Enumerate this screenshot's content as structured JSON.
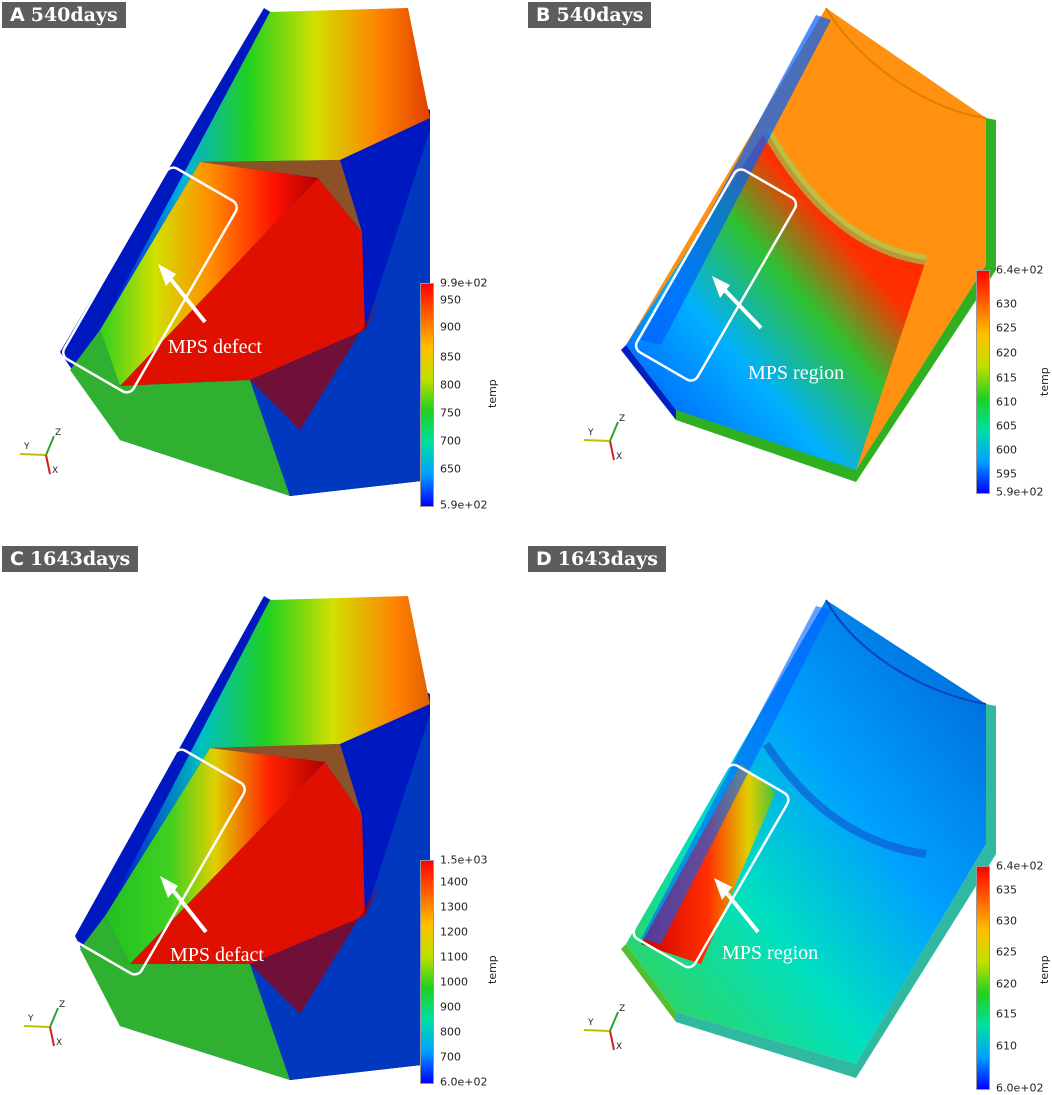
{
  "panels": {
    "A": {
      "letter": "A",
      "time": "540days",
      "annotation": "MPS defect",
      "colorbar_title": "temp",
      "ticks": [
        "9.9e+02",
        "950",
        "900",
        "850",
        "800",
        "750",
        "700",
        "650",
        "5.9e+02"
      ]
    },
    "B": {
      "letter": "B",
      "time": "540days",
      "annotation": "MPS region",
      "colorbar_title": "temp",
      "ticks": [
        "6.4e+02",
        "630",
        "625",
        "620",
        "615",
        "610",
        "605",
        "600",
        "595",
        "5.9e+02"
      ]
    },
    "C": {
      "letter": "C",
      "time": "1643days",
      "annotation": "MPS defact",
      "colorbar_title": "temp",
      "ticks": [
        "1.5e+03",
        "1400",
        "1300",
        "1200",
        "1100",
        "1000",
        "900",
        "800",
        "700",
        "6.0e+02"
      ]
    },
    "D": {
      "letter": "D",
      "time": "1643days",
      "annotation": "MPS region",
      "colorbar_title": "temp",
      "ticks": [
        "6.4e+02",
        "635",
        "630",
        "625",
        "620",
        "615",
        "610",
        "6.0e+02"
      ]
    }
  },
  "axes": {
    "x": "X",
    "y": "Y",
    "z": "Z"
  },
  "colormap": [
    "#0000ff",
    "#00a0ff",
    "#00e0a0",
    "#20d020",
    "#c0e000",
    "#ffc000",
    "#ff6000",
    "#ff0000"
  ]
}
